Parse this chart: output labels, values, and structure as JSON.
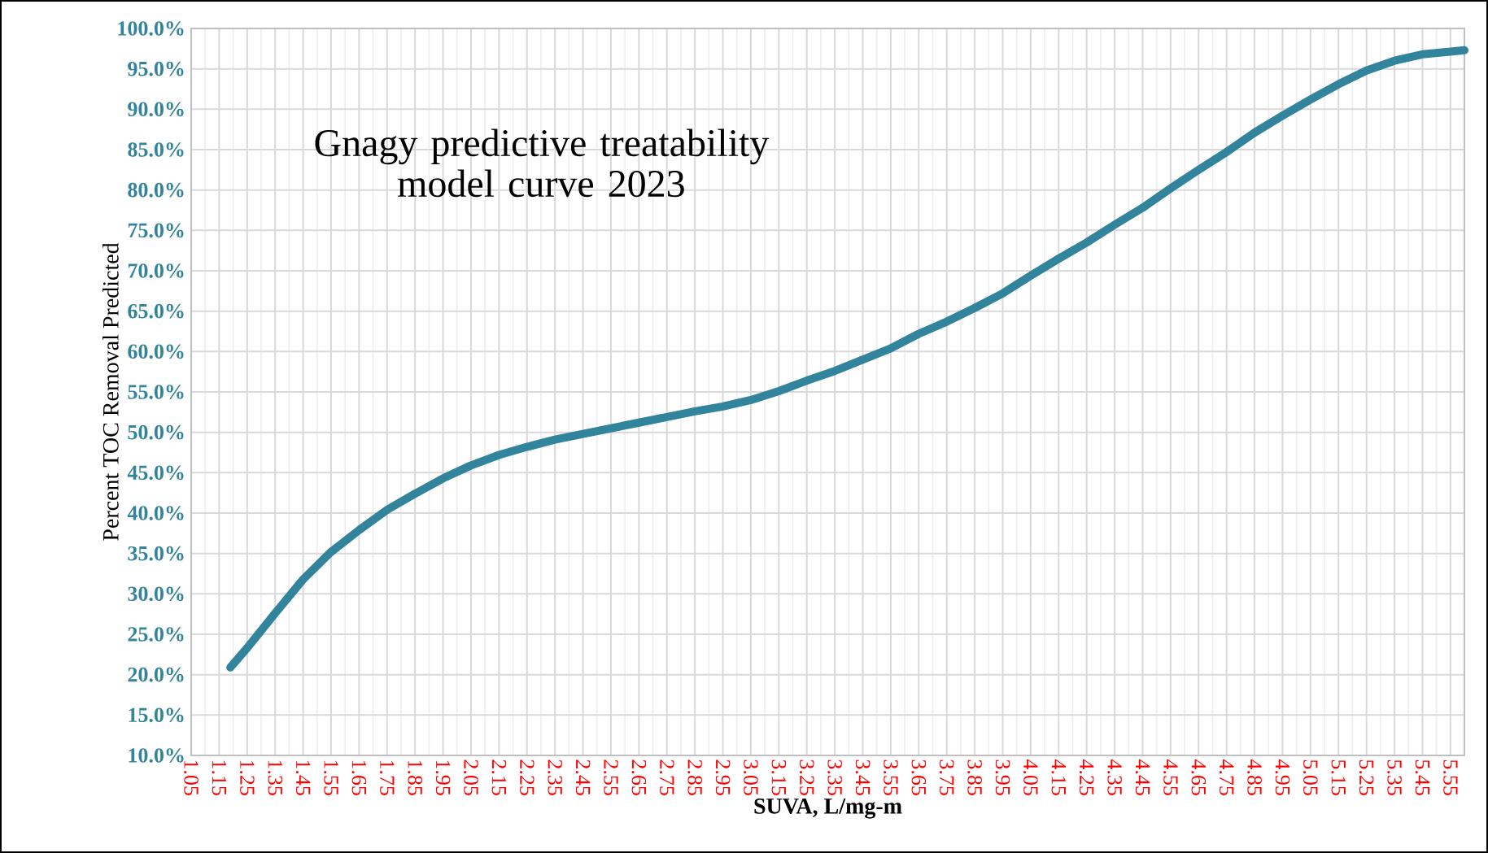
{
  "chart_data": {
    "type": "line",
    "title": "Gnagy predictive treatability model curve 2023",
    "xlabel": "SUVA, L/mg-m",
    "ylabel": "Percent TOC Removal Predicted",
    "x": [
      1.19,
      1.25,
      1.35,
      1.45,
      1.55,
      1.65,
      1.75,
      1.85,
      1.95,
      2.05,
      2.15,
      2.25,
      2.35,
      2.45,
      2.55,
      2.65,
      2.75,
      2.85,
      2.95,
      3.05,
      3.15,
      3.25,
      3.35,
      3.45,
      3.55,
      3.65,
      3.75,
      3.85,
      3.95,
      4.05,
      4.15,
      4.25,
      4.35,
      4.45,
      4.55,
      4.65,
      4.75,
      4.85,
      4.95,
      5.05,
      5.15,
      5.25,
      5.35,
      5.45,
      5.6
    ],
    "series": [
      {
        "color": "#31849b",
        "values": [
          20.9,
          23.3,
          27.6,
          31.8,
          35.2,
          37.9,
          40.4,
          42.4,
          44.3,
          45.9,
          47.2,
          48.2,
          49.1,
          49.8,
          50.5,
          51.2,
          51.9,
          52.6,
          53.2,
          54.0,
          55.1,
          56.4,
          57.6,
          59.0,
          60.4,
          62.2,
          63.7,
          65.4,
          67.2,
          69.4,
          71.5,
          73.5,
          75.7,
          77.8,
          80.2,
          82.5,
          84.7,
          87.1,
          89.2,
          91.2,
          93.1,
          94.8,
          96.0,
          96.8,
          97.3
        ]
      }
    ],
    "xlim": [
      1.05,
      5.6
    ],
    "xticks": [
      1.05,
      1.15,
      1.25,
      1.35,
      1.45,
      1.55,
      1.65,
      1.75,
      1.85,
      1.95,
      2.05,
      2.15,
      2.25,
      2.35,
      2.45,
      2.55,
      2.65,
      2.75,
      2.85,
      2.95,
      3.05,
      3.15,
      3.25,
      3.35,
      3.45,
      3.55,
      3.65,
      3.75,
      3.85,
      3.95,
      4.05,
      4.15,
      4.25,
      4.35,
      4.45,
      4.55,
      4.65,
      4.75,
      4.85,
      4.95,
      5.05,
      5.15,
      5.25,
      5.35,
      5.45,
      5.55
    ],
    "ylim": [
      10,
      100
    ],
    "yticks": [
      {
        "value": 10,
        "label": "10.0%"
      },
      {
        "value": 15,
        "label": "15.0%"
      },
      {
        "value": 20,
        "label": "20.0%"
      },
      {
        "value": 25,
        "label": "25.0%"
      },
      {
        "value": 30,
        "label": "30.0%"
      },
      {
        "value": 35,
        "label": "35.0%"
      },
      {
        "value": 40,
        "label": "40.0%"
      },
      {
        "value": 45,
        "label": "45.0%"
      },
      {
        "value": 50,
        "label": "50.0%"
      },
      {
        "value": 55,
        "label": "55.0%"
      },
      {
        "value": 60,
        "label": "60.0%"
      },
      {
        "value": 65,
        "label": "65.0%"
      },
      {
        "value": 70,
        "label": "70.0%"
      },
      {
        "value": 75,
        "label": "75.0%"
      },
      {
        "value": 80,
        "label": "80.0%"
      },
      {
        "value": 85,
        "label": "85.0%"
      },
      {
        "value": 90,
        "label": "90.0%"
      },
      {
        "value": 95,
        "label": "95.0%"
      },
      {
        "value": 100,
        "label": "100.0%"
      }
    ],
    "grid": true,
    "marker": "none",
    "line_style": "solid"
  }
}
